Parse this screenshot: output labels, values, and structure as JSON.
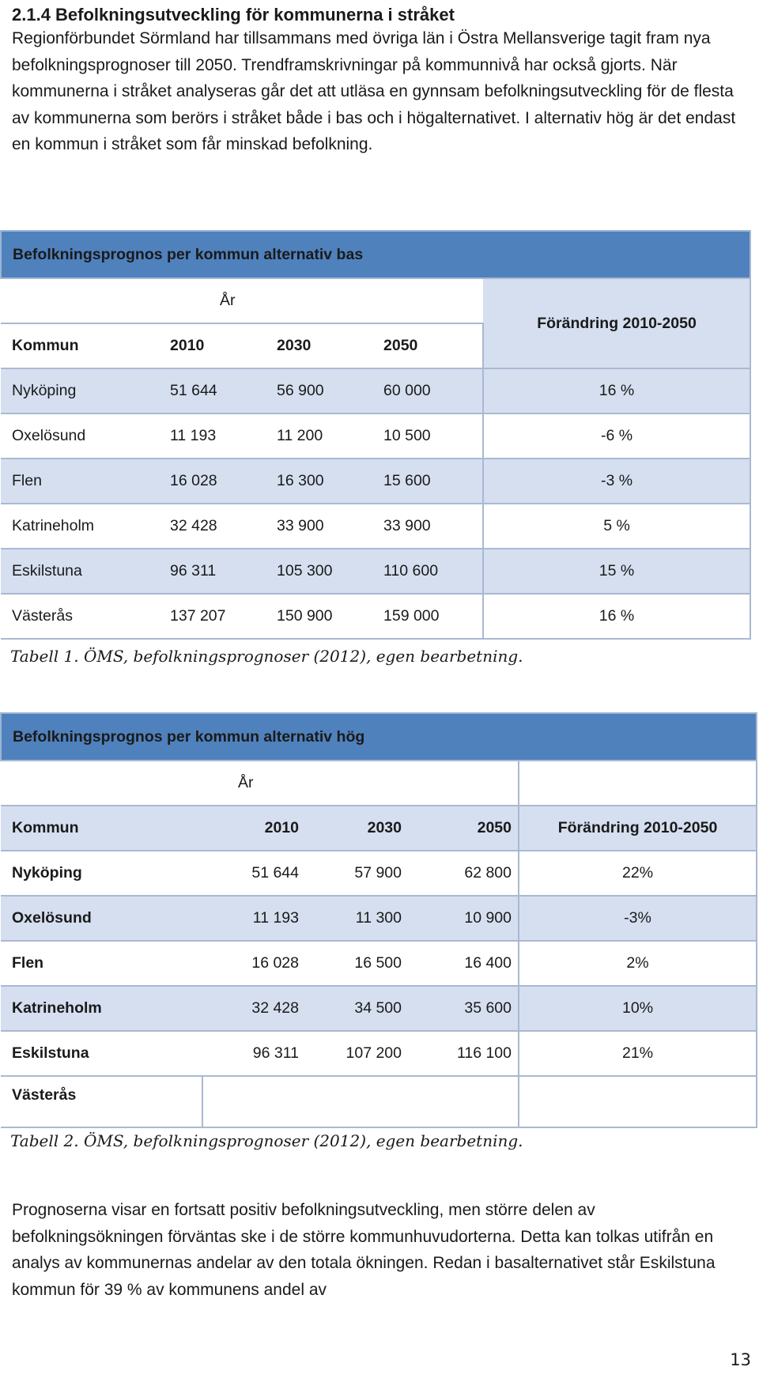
{
  "section": {
    "heading": "2.1.4 Befolkningsutveckling för kommunerna i stråket",
    "intro": "Regionförbundet Sörmland har tillsammans med övriga län i Östra Mellansverige tagit fram nya befolkningsprognoser till 2050. Trendframskrivningar på kommunnivå har också gjorts. När kommunerna i stråket analyseras går det att utläsa en gynnsam befolkningsutveckling för de flesta av kommunerna som berörs i stråket både i bas och i högalternativet. I alternativ hög är det endast en kommun i stråket som får minskad befolkning."
  },
  "table1": {
    "title": "Befolkningsprognos per kommun alternativ bas",
    "year_group": "År",
    "col_kommun": "Kommun",
    "col_2010": "2010",
    "col_2030": "2030",
    "col_2050": "2050",
    "col_change": "Förändring 2010-2050",
    "rows": [
      {
        "kommun": "Nyköping",
        "y2010": "51 644",
        "y2030": "56 900",
        "y2050": "60 000",
        "change": "16 %"
      },
      {
        "kommun": "Oxelösund",
        "y2010": "11 193",
        "y2030": "11 200",
        "y2050": "10 500",
        "change": "-6 %"
      },
      {
        "kommun": "Flen",
        "y2010": "16 028",
        "y2030": "16 300",
        "y2050": "15 600",
        "change": "-3 %"
      },
      {
        "kommun": "Katrineholm",
        "y2010": "32 428",
        "y2030": "33 900",
        "y2050": "33 900",
        "change": "5 %"
      },
      {
        "kommun": "Eskilstuna",
        "y2010": "96 311",
        "y2030": "105 300",
        "y2050": "110 600",
        "change": "15 %"
      },
      {
        "kommun": "Västerås",
        "y2010": "137 207",
        "y2030": "150 900",
        "y2050": "159 000",
        "change": "16 %"
      }
    ],
    "caption": "Tabell 1. ÖMS, befolkningsprognoser (2012), egen bearbetning."
  },
  "table2": {
    "title": "Befolkningsprognos per kommun alternativ hög",
    "year_group": "År",
    "col_kommun": "Kommun",
    "col_2010": "2010",
    "col_2030": "2030",
    "col_2050": "2050",
    "col_change": "Förändring 2010-2050",
    "rows": [
      {
        "kommun": "Nyköping",
        "y2010": "51 644",
        "y2030": "57 900",
        "y2050": "62 800",
        "change": "22%"
      },
      {
        "kommun": "Oxelösund",
        "y2010": "11 193",
        "y2030": "11 300",
        "y2050": "10 900",
        "change": "-3%"
      },
      {
        "kommun": "Flen",
        "y2010": "16 028",
        "y2030": "16 500",
        "y2050": "16 400",
        "change": "2%"
      },
      {
        "kommun": "Katrineholm",
        "y2010": "32 428",
        "y2030": "34 500",
        "y2050": "35 600",
        "change": "10%"
      },
      {
        "kommun": "Eskilstuna",
        "y2010": "96 311",
        "y2030": "107 200",
        "y2050": "116 100",
        "change": "21%"
      },
      {
        "kommun": "Västerås",
        "y2010": "",
        "y2030": "",
        "y2050": "",
        "change": ""
      }
    ],
    "caption": "Tabell 2. ÖMS, befolkningsprognoser (2012), egen bearbetning."
  },
  "outro": "Prognoserna visar en fortsatt positiv befolkningsutveckling, men större delen av befolkningsökningen förväntas ske i de större kommunhuvudorterna. Detta kan tolkas utifrån en analys av kommunernas andelar av den totala ökningen. Redan i basalternativet står Eskilstuna kommun för 39 % av kommunens andel av",
  "page_number": "13"
}
